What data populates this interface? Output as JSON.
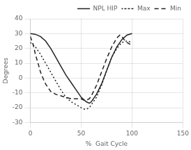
{
  "chart_data": {
    "type": "line",
    "xlabel": "%  Gait Cycle",
    "ylabel": "Degrees",
    "xlim": [
      0,
      150
    ],
    "ylim": [
      -30,
      40
    ],
    "xticks": [
      0,
      50,
      100,
      150
    ],
    "yticks": [
      -30,
      -20,
      -10,
      0,
      10,
      20,
      30,
      40
    ],
    "grid": true,
    "legend": "upper right",
    "series": [
      {
        "name": "NPL HIP",
        "color": "#222222",
        "line_style": "solid",
        "x": [
          0,
          5,
          10,
          15,
          20,
          25,
          30,
          35,
          40,
          45,
          50,
          55,
          58,
          60,
          65,
          70,
          75,
          80,
          85,
          90,
          95,
          100
        ],
        "values": [
          30,
          29.5,
          28,
          25,
          20,
          14,
          8,
          2,
          -3,
          -8,
          -13,
          -16,
          -17,
          -16,
          -11,
          -4,
          5,
          14,
          21,
          26,
          29,
          30
        ]
      },
      {
        "name": "Max",
        "color": "#222222",
        "line_style": "dotted",
        "x": [
          0,
          5,
          10,
          15,
          20,
          25,
          30,
          35,
          40,
          45,
          50,
          53,
          55,
          58,
          60,
          65,
          70,
          75,
          80,
          85,
          90,
          95,
          100
        ],
        "values": [
          24,
          21,
          16,
          10,
          4,
          -2,
          -8,
          -13,
          -16,
          -18,
          -20,
          -21,
          -21,
          -20,
          -18,
          -13,
          -5,
          5,
          14,
          20,
          24,
          25,
          24
        ]
      },
      {
        "name": "Min",
        "color": "#222222",
        "line_style": "dashed",
        "x": [
          0,
          3,
          5,
          8,
          10,
          13,
          15,
          18,
          20,
          25,
          30,
          35,
          40,
          45,
          50,
          53,
          55,
          58,
          60,
          65,
          70,
          75,
          80,
          85,
          88,
          90,
          92,
          95,
          100
        ],
        "values": [
          28,
          22,
          16,
          9,
          4,
          -1,
          -4,
          -7,
          -9,
          -11,
          -12,
          -13,
          -14,
          -14,
          -14,
          -15,
          -15,
          -14,
          -12,
          -5,
          4,
          13,
          21,
          27,
          29,
          28,
          26,
          24,
          22
        ]
      }
    ]
  }
}
